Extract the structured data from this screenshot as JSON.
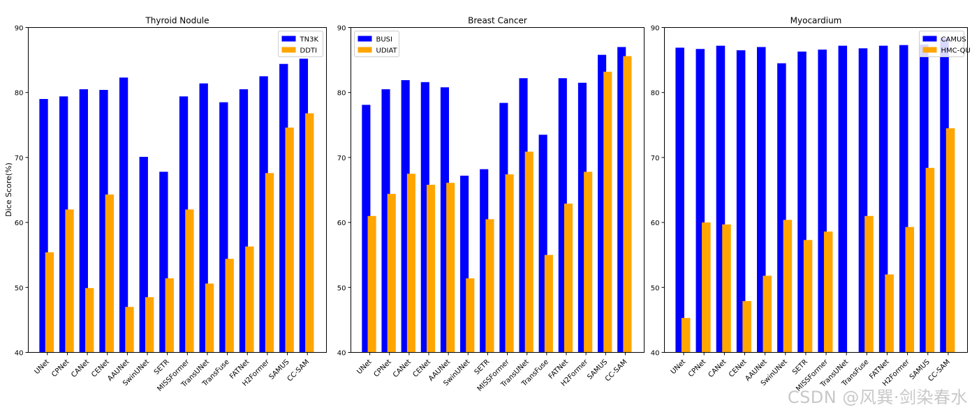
{
  "shared": {
    "categories": [
      "UNet",
      "CPNet",
      "CANet",
      "CENet",
      "AAUNet",
      "SwinUNet",
      "SETR",
      "MISSFormer",
      "TransUNet",
      "TransFuse",
      "FATNet",
      "H2Former",
      "SAMUS",
      "CC-SAM"
    ],
    "ylabel": "Dice Score(%)",
    "ylim": [
      40,
      90
    ],
    "yticks": [
      "40",
      "50",
      "60",
      "70",
      "80",
      "90"
    ],
    "colors": {
      "series1": "#0000ff",
      "series2": "#ffa500"
    }
  },
  "chart_data": [
    {
      "type": "bar",
      "title": "Thyroid Nodule",
      "legend_position": "top-right",
      "series": [
        {
          "name": "TN3K",
          "values": [
            79.0,
            79.4,
            80.5,
            80.4,
            82.3,
            70.1,
            67.8,
            79.4,
            81.4,
            78.5,
            80.5,
            82.5,
            84.4,
            85.2
          ]
        },
        {
          "name": "DDTI",
          "values": [
            55.4,
            62.0,
            49.9,
            64.3,
            47.0,
            48.5,
            51.4,
            62.0,
            50.6,
            54.4,
            56.3,
            67.6,
            74.6,
            76.8
          ]
        }
      ]
    },
    {
      "type": "bar",
      "title": "Breast Cancer",
      "legend_position": "top-left",
      "series": [
        {
          "name": "BUSI",
          "values": [
            78.1,
            80.5,
            81.9,
            81.6,
            80.8,
            67.2,
            68.2,
            78.4,
            82.2,
            73.5,
            82.2,
            81.5,
            85.8,
            87.0
          ]
        },
        {
          "name": "UDIAT",
          "values": [
            61.0,
            64.4,
            67.5,
            65.8,
            66.1,
            51.4,
            60.5,
            67.4,
            70.9,
            55.0,
            62.9,
            67.8,
            83.2,
            85.6
          ]
        }
      ]
    },
    {
      "type": "bar",
      "title": "Myocardium",
      "legend_position": "top-right",
      "series": [
        {
          "name": "CAMUS",
          "values": [
            86.9,
            86.7,
            87.2,
            86.5,
            87.0,
            84.5,
            86.3,
            86.6,
            87.2,
            86.8,
            87.2,
            87.3,
            87.4,
            88.4
          ]
        },
        {
          "name": "HMC-QU",
          "values": [
            45.3,
            60.0,
            59.7,
            47.9,
            51.8,
            60.4,
            57.3,
            58.6,
            40.0,
            61.0,
            52.0,
            59.3,
            68.4,
            74.5
          ]
        }
      ]
    }
  ],
  "watermark": "CSDN @风巽·剑染春水"
}
